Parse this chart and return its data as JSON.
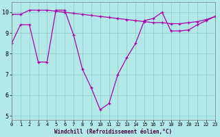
{
  "x": [
    0,
    1,
    2,
    3,
    4,
    5,
    6,
    7,
    8,
    9,
    10,
    11,
    12,
    13,
    14,
    15,
    16,
    17,
    18,
    19,
    20,
    21,
    22,
    23
  ],
  "line1": [
    9.9,
    9.9,
    10.1,
    10.1,
    10.1,
    10.05,
    10.0,
    9.95,
    9.9,
    9.85,
    9.8,
    9.75,
    9.7,
    9.65,
    9.6,
    9.55,
    9.5,
    9.5,
    9.45,
    9.45,
    9.5,
    9.55,
    9.65,
    9.8
  ],
  "line2_x": [
    0,
    1,
    2,
    3,
    4,
    5,
    6,
    7,
    8,
    9,
    10,
    11,
    12,
    13,
    14,
    15,
    16,
    17,
    18,
    19,
    20,
    21,
    22,
    23
  ],
  "line2_y": [
    8.5,
    9.4,
    9.4,
    7.6,
    7.6,
    10.1,
    10.1,
    8.9,
    7.25,
    6.35,
    5.3,
    5.6,
    7.0,
    7.8,
    8.5,
    9.6,
    9.7,
    10.0,
    9.1,
    9.1,
    9.15,
    9.4,
    9.6,
    9.8
  ],
  "bg_color": "#b3e8e8",
  "grid_color": "#88cccc",
  "line_color": "#aa00aa",
  "xlabel": "Windchill (Refroidissement éolien,°C)",
  "xlim": [
    0,
    23
  ],
  "ylim": [
    4.8,
    10.5
  ],
  "yticks": [
    5,
    6,
    7,
    8,
    9,
    10
  ],
  "xticks": [
    0,
    1,
    2,
    3,
    4,
    5,
    6,
    7,
    8,
    9,
    10,
    11,
    12,
    13,
    14,
    15,
    16,
    17,
    18,
    19,
    20,
    21,
    22,
    23
  ]
}
